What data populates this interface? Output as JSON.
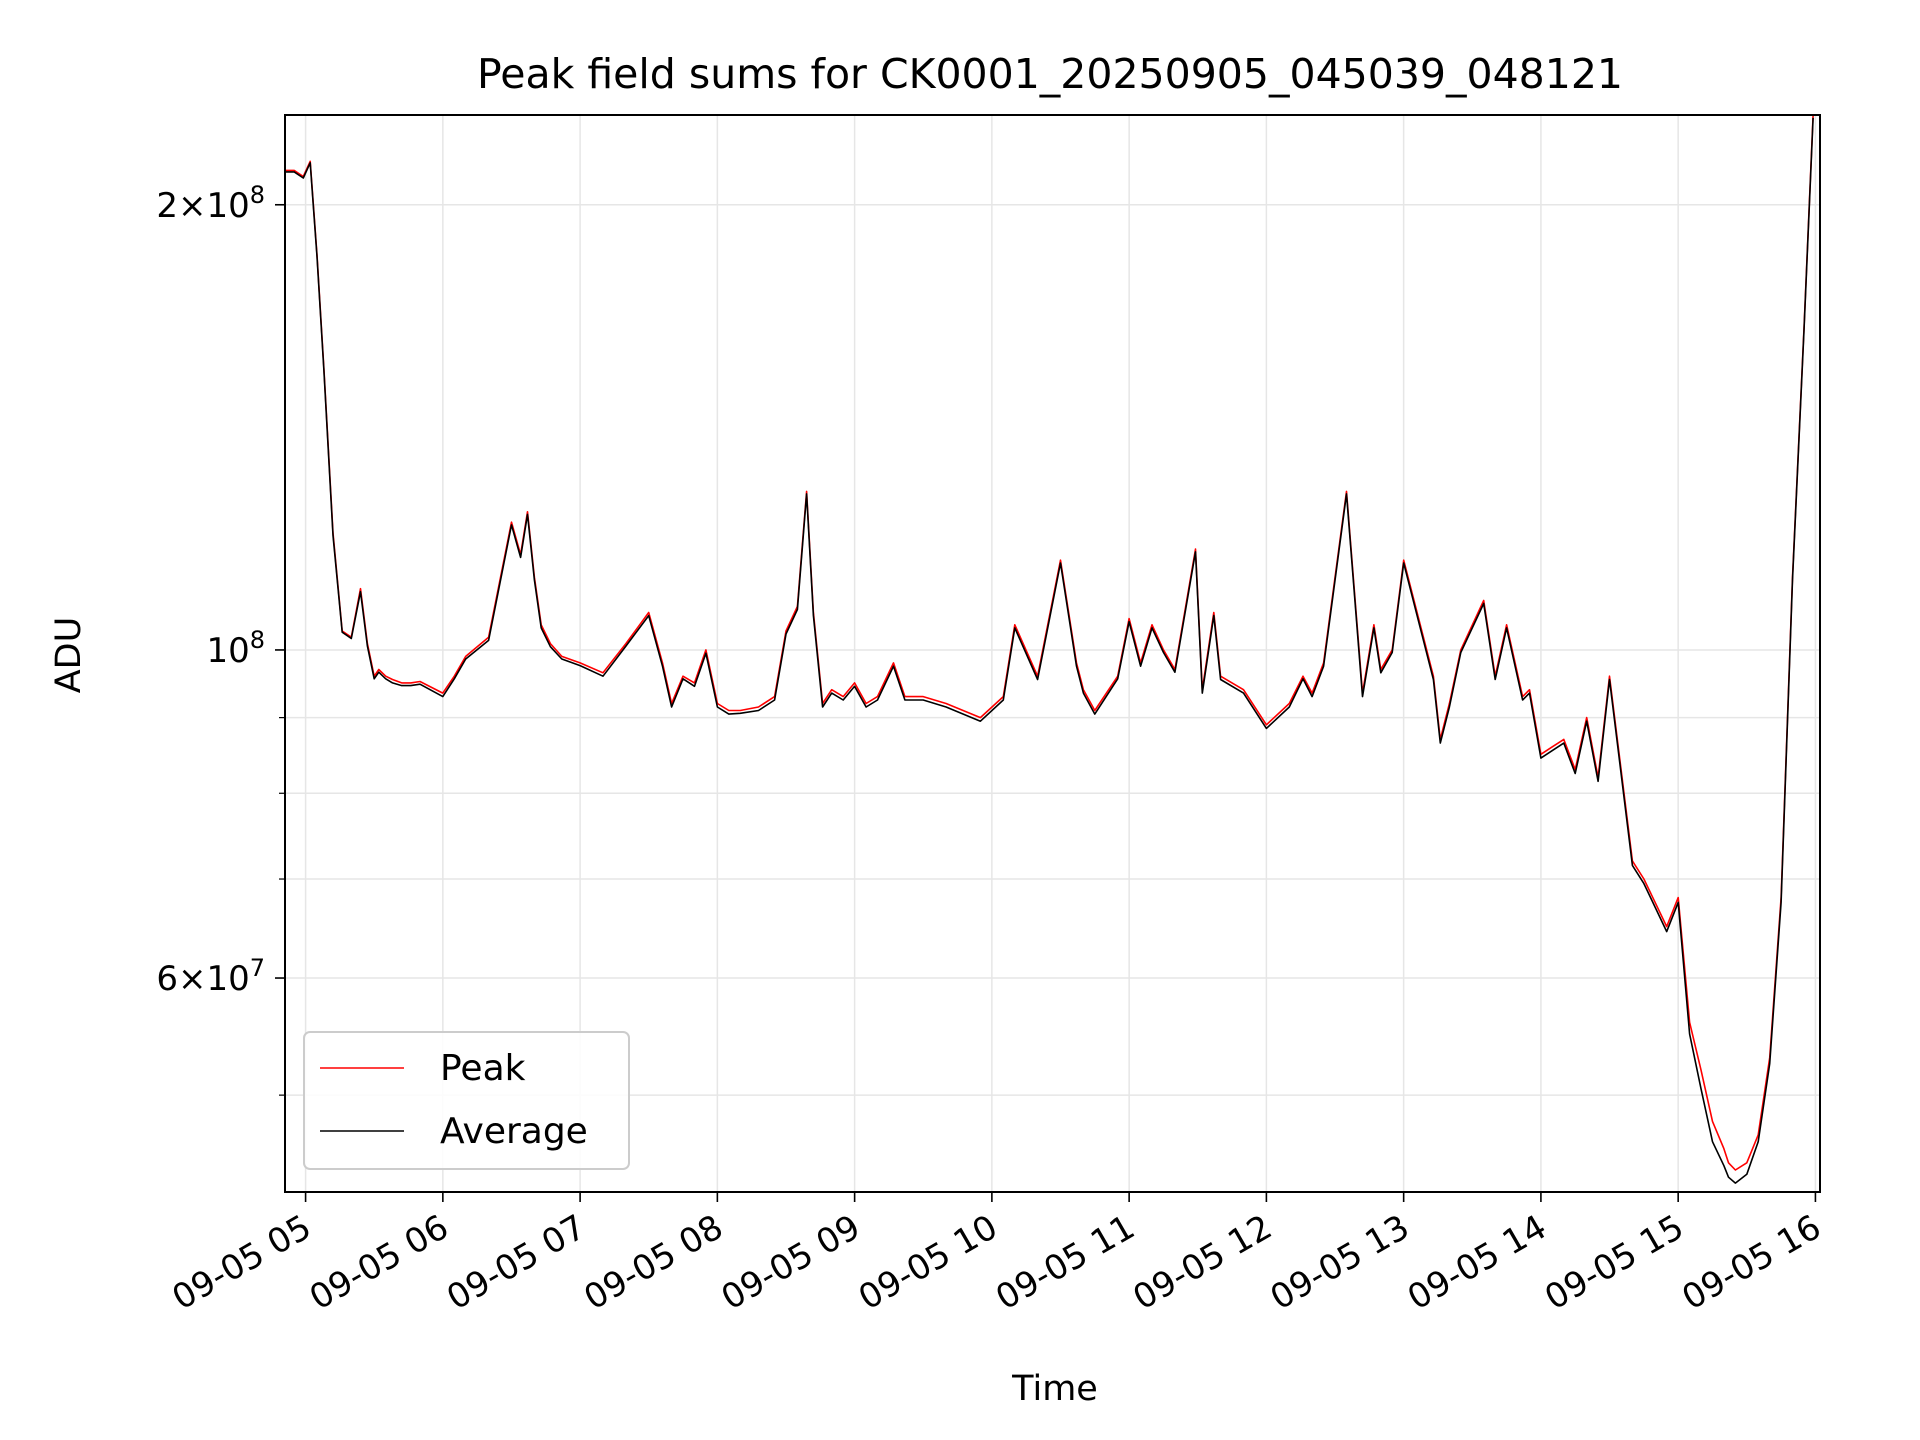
{
  "chart_data": {
    "type": "line",
    "title": "Peak field sums for CK0001_20250905_045039_048121",
    "xlabel": "Time",
    "ylabel": "ADU",
    "yscale": "log",
    "ylim": [
      43000000,
      230000000
    ],
    "xlim": [
      "09-05 04:51",
      "09-05 16:02"
    ],
    "x_ticks": [
      "09-05 05",
      "09-05 06",
      "09-05 07",
      "09-05 08",
      "09-05 09",
      "09-05 10",
      "09-05 11",
      "09-05 12",
      "09-05 13",
      "09-05 14",
      "09-05 15",
      "09-05 16"
    ],
    "y_ticks_labeled": [
      {
        "value": 60000000,
        "mantissa": "6",
        "exponent": "7"
      },
      {
        "value": 100000000,
        "mantissa": "",
        "exponent": "8"
      },
      {
        "value": 200000000,
        "mantissa": "2",
        "exponent": "8"
      }
    ],
    "y_ticks_minor": [
      50000000,
      70000000,
      80000000,
      90000000
    ],
    "grid": true,
    "legend_position": "lower-left",
    "colors": {
      "peak": "#ff0000",
      "average": "#000000",
      "grid": "#e6e6e6"
    },
    "series": [
      {
        "name": "Peak",
        "x": [
          "04:51",
          "04:55",
          "04:59",
          "05:02",
          "05:05",
          "05:08",
          "05:12",
          "05:16",
          "05:20",
          "05:24",
          "05:27",
          "05:30",
          "05:32",
          "05:35",
          "05:38",
          "05:42",
          "05:46",
          "05:50",
          "06:00",
          "06:05",
          "06:10",
          "06:20",
          "06:30",
          "06:34",
          "06:37",
          "06:40",
          "06:43",
          "06:47",
          "06:52",
          "07:00",
          "07:10",
          "07:20",
          "07:30",
          "07:36",
          "07:40",
          "07:45",
          "07:50",
          "07:55",
          "08:00",
          "08:05",
          "08:10",
          "08:18",
          "08:25",
          "08:30",
          "08:35",
          "08:39",
          "08:42",
          "08:46",
          "08:50",
          "08:55",
          "09:00",
          "09:05",
          "09:10",
          "09:17",
          "09:22",
          "09:30",
          "09:40",
          "09:55",
          "10:05",
          "10:10",
          "10:20",
          "10:30",
          "10:37",
          "10:40",
          "10:45",
          "10:55",
          "11:00",
          "11:05",
          "11:10",
          "11:15",
          "11:20",
          "11:29",
          "11:32",
          "11:37",
          "11:40",
          "11:50",
          "12:00",
          "12:10",
          "12:16",
          "12:20",
          "12:25",
          "12:35",
          "12:42",
          "12:47",
          "12:50",
          "12:55",
          "13:00",
          "13:13",
          "13:16",
          "13:20",
          "13:25",
          "13:35",
          "13:40",
          "13:45",
          "13:52",
          "13:55",
          "14:00",
          "14:05",
          "14:10",
          "14:15",
          "14:20",
          "14:25",
          "14:30",
          "14:40",
          "14:45",
          "14:55",
          "15:00",
          "15:05",
          "15:10",
          "15:15",
          "15:20",
          "15:22",
          "15:25",
          "15:30",
          "15:35",
          "15:40",
          "15:45",
          "15:50",
          "15:55",
          "15:59"
        ],
        "values": [
          211000000,
          211000000,
          209000000,
          214000000,
          185000000,
          155000000,
          120000000,
          103000000,
          102000000,
          110000000,
          101000000,
          96000000,
          97000000,
          96000000,
          95500000,
          95000000,
          95000000,
          95200000,
          93500000,
          96000000,
          99000000,
          102000000,
          122000000,
          116000000,
          124000000,
          112000000,
          104000000,
          101000000,
          99000000,
          98000000,
          96500000,
          101000000,
          106000000,
          98000000,
          92000000,
          96000000,
          95000000,
          100000000,
          92000000,
          91000000,
          91000000,
          91500000,
          93000000,
          103000000,
          107000000,
          128000000,
          106000000,
          92000000,
          94000000,
          93000000,
          95000000,
          92000000,
          93000000,
          98000000,
          93000000,
          93000000,
          92000000,
          90000000,
          93000000,
          104000000,
          96000000,
          115000000,
          98000000,
          94000000,
          91000000,
          96000000,
          105000000,
          98000000,
          104000000,
          100000000,
          97000000,
          117000000,
          94000000,
          106000000,
          96000000,
          94000000,
          89000000,
          92000000,
          96000000,
          93500000,
          98000000,
          128000000,
          93500000,
          104000000,
          97000000,
          100000000,
          115000000,
          96000000,
          87000000,
          92000000,
          100000000,
          108000000,
          96000000,
          104000000,
          93000000,
          94000000,
          85000000,
          86000000,
          87000000,
          83000000,
          90000000,
          82000000,
          96000000,
          72000000,
          70000000,
          65000000,
          68000000,
          56000000,
          52000000,
          48000000,
          46000000,
          45000000,
          44500000,
          45000000,
          47000000,
          53000000,
          68000000,
          112000000,
          165000000,
          230000000
        ]
      },
      {
        "name": "Average",
        "x": [
          "04:51",
          "04:55",
          "04:59",
          "05:02",
          "05:05",
          "05:08",
          "05:12",
          "05:16",
          "05:20",
          "05:24",
          "05:27",
          "05:30",
          "05:32",
          "05:35",
          "05:38",
          "05:42",
          "05:46",
          "05:50",
          "06:00",
          "06:05",
          "06:10",
          "06:20",
          "06:30",
          "06:34",
          "06:37",
          "06:40",
          "06:43",
          "06:47",
          "06:52",
          "07:00",
          "07:10",
          "07:20",
          "07:30",
          "07:36",
          "07:40",
          "07:45",
          "07:50",
          "07:55",
          "08:00",
          "08:05",
          "08:10",
          "08:18",
          "08:25",
          "08:30",
          "08:35",
          "08:39",
          "08:42",
          "08:46",
          "08:50",
          "08:55",
          "09:00",
          "09:05",
          "09:10",
          "09:17",
          "09:22",
          "09:30",
          "09:40",
          "09:55",
          "10:05",
          "10:10",
          "10:20",
          "10:30",
          "10:37",
          "10:40",
          "10:45",
          "10:55",
          "11:00",
          "11:05",
          "11:10",
          "11:15",
          "11:20",
          "11:29",
          "11:32",
          "11:37",
          "11:40",
          "11:50",
          "12:00",
          "12:10",
          "12:16",
          "12:20",
          "12:25",
          "12:35",
          "12:42",
          "12:47",
          "12:50",
          "12:55",
          "13:00",
          "13:13",
          "13:16",
          "13:20",
          "13:25",
          "13:35",
          "13:40",
          "13:45",
          "13:52",
          "13:55",
          "14:00",
          "14:05",
          "14:10",
          "14:15",
          "14:20",
          "14:25",
          "14:30",
          "14:40",
          "14:45",
          "14:55",
          "15:00",
          "15:05",
          "15:10",
          "15:15",
          "15:20",
          "15:22",
          "15:25",
          "15:30",
          "15:35",
          "15:40",
          "15:45",
          "15:50",
          "15:55",
          "15:59"
        ],
        "values": [
          210500000,
          210500000,
          208500000,
          213500000,
          184500000,
          154500000,
          119500000,
          102800000,
          101800000,
          109500000,
          100600000,
          95600000,
          96600000,
          95600000,
          95000000,
          94600000,
          94600000,
          94800000,
          93000000,
          95600000,
          98600000,
          101500000,
          121500000,
          115500000,
          123500000,
          111500000,
          103500000,
          100500000,
          98600000,
          97600000,
          96000000,
          100600000,
          105500000,
          97500000,
          91500000,
          95600000,
          94500000,
          99500000,
          91500000,
          90500000,
          90600000,
          91000000,
          92500000,
          102500000,
          106500000,
          127500000,
          105500000,
          91500000,
          93500000,
          92500000,
          94500000,
          91500000,
          92500000,
          97500000,
          92500000,
          92500000,
          91500000,
          89500000,
          92500000,
          103500000,
          95500000,
          114500000,
          97500000,
          93500000,
          90500000,
          95600000,
          104500000,
          97500000,
          103500000,
          99600000,
          96600000,
          116500000,
          93500000,
          105500000,
          95500000,
          93500000,
          88500000,
          91500000,
          95600000,
          93000000,
          97500000,
          127500000,
          93000000,
          103500000,
          96500000,
          99600000,
          114500000,
          95500000,
          86500000,
          91500000,
          99600000,
          107500000,
          95500000,
          103500000,
          92500000,
          93500000,
          84500000,
          85500000,
          86500000,
          82500000,
          89500000,
          81500000,
          95500000,
          71500000,
          69500000,
          64500000,
          67500000,
          55000000,
          50500000,
          46500000,
          44800000,
          44000000,
          43600000,
          44200000,
          46500000,
          52500000,
          67500000,
          111500000,
          164500000,
          229000000
        ]
      }
    ]
  }
}
